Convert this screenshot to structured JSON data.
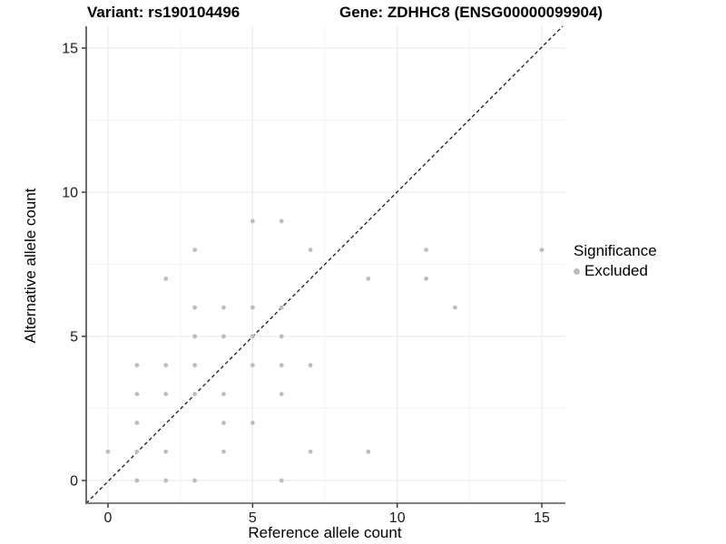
{
  "chart_data": {
    "type": "scatter",
    "title_variant": "Variant: rs190104496",
    "title_gene": "Gene: ZDHHC8 (ENSG00000099904)",
    "xlabel": "Reference allele count",
    "ylabel": "Alternative allele count",
    "xlim": [
      -0.75,
      15.75
    ],
    "ylim": [
      -0.75,
      15.75
    ],
    "x_ticks": [
      0,
      5,
      10,
      15
    ],
    "y_ticks": [
      0,
      5,
      10,
      15
    ],
    "x_minor_ticks": [
      2.5,
      7.5,
      12.5
    ],
    "y_minor_ticks": [
      2.5,
      7.5,
      12.5
    ],
    "grid": "major+minor",
    "identity_line": {
      "slope": 1,
      "intercept": 0,
      "style": "dashed",
      "color": "#1a1a1a"
    },
    "point_color": "#bdbdbd",
    "points": [
      [
        0,
        1
      ],
      [
        1,
        0
      ],
      [
        1,
        1
      ],
      [
        1,
        2
      ],
      [
        1,
        3
      ],
      [
        1,
        4
      ],
      [
        2,
        0
      ],
      [
        2,
        1
      ],
      [
        2,
        3
      ],
      [
        2,
        4
      ],
      [
        2,
        7
      ],
      [
        3,
        0
      ],
      [
        3,
        3
      ],
      [
        3,
        4
      ],
      [
        3,
        5
      ],
      [
        3,
        6
      ],
      [
        3,
        8
      ],
      [
        4,
        1
      ],
      [
        4,
        2
      ],
      [
        4,
        3
      ],
      [
        4,
        5
      ],
      [
        4,
        6
      ],
      [
        5,
        2
      ],
      [
        5,
        4
      ],
      [
        5,
        5
      ],
      [
        5,
        6
      ],
      [
        5,
        9
      ],
      [
        6,
        0
      ],
      [
        6,
        3
      ],
      [
        6,
        4
      ],
      [
        6,
        5
      ],
      [
        6,
        6
      ],
      [
        6,
        9
      ],
      [
        7,
        1
      ],
      [
        7,
        4
      ],
      [
        7,
        8
      ],
      [
        9,
        1
      ],
      [
        9,
        7
      ],
      [
        11,
        7
      ],
      [
        11,
        8
      ],
      [
        12,
        6
      ],
      [
        15,
        8
      ]
    ],
    "legend": {
      "title": "Significance",
      "position": "right",
      "items": [
        {
          "label": "Excluded",
          "color": "#bdbdbd"
        }
      ]
    }
  }
}
